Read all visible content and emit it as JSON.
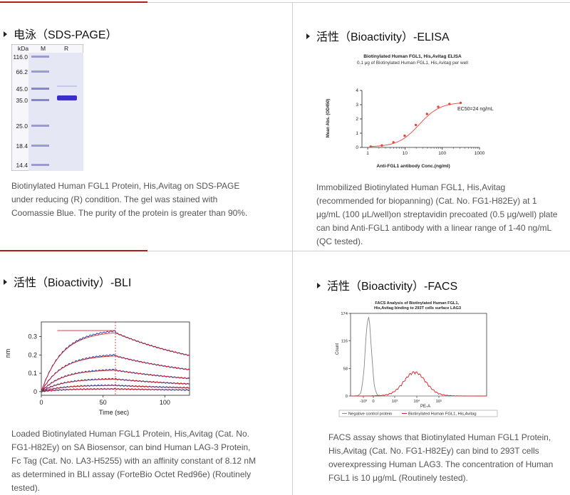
{
  "sections": {
    "sds": {
      "title": "电泳（SDS-PAGE）",
      "gel_header_kda": "kDa",
      "lanes": [
        "M",
        "R"
      ],
      "markers": [
        "116.0",
        "66.2",
        "45.0",
        "35.0",
        "25.0",
        "18.4",
        "14.4"
      ],
      "description": "Biotinylated Human FGL1 Protein, His,Avitag on SDS-PAGE under reducing (R) condition. The gel was stained with Coomassie Blue. The purity of the protein is greater than 90%."
    },
    "elisa": {
      "title": "活性（Bioactivity）-ELISA",
      "description": "Immobilized Biotinylated Human FGL1, His,Avitag (recommended for biopanning) (Cat. No. FG1-H82Ey) at 1 μg/mL (100 μL/well)on streptavidin precoated (0.5 μg/well) plate can bind Anti-FGL1 antibody with a linear range of 1-40 ng/mL (QC tested)."
    },
    "bli": {
      "title": "活性（Bioactivity）-BLI",
      "description": "Loaded Biotinylated Human FGL1 Protein, His,Avitag (Cat. No. FG1-H82Ey) on SA Biosensor, can bind Human LAG-3 Protein, Fc Tag (Cat. No. LA3-H5255) with an affinity constant of 8.12 nM as determined in BLI assay (ForteBio Octet Red96e) (Routinely tested)."
    },
    "facs": {
      "title": "活性（Bioactivity）-FACS",
      "description": "FACS assay shows that Biotinylated Human FGL1 Protein, His,Avitag (Cat. No. FG1-H82Ey) can bind to 293T cells overexpressing Human LAG3. The concentration of Human FGL1 is 10 μg/mL (Routinely tested)."
    }
  },
  "chart_data": [
    {
      "type": "line",
      "title": "Biotinylated Human FGL1, His,Avitag ELISA",
      "subtitle": "0.1 μg of Biotinylated Human FGL1, His,Avitag per well",
      "xlabel": "Anti-FGL1 antibody Conc.(ng/ml)",
      "ylabel": "Mean Abs. (OD450)",
      "xscale": "log",
      "xlim": [
        0.7,
        1000
      ],
      "ylim": [
        0,
        4
      ],
      "xticks": [
        "1",
        "10",
        "100",
        "1000"
      ],
      "yticks": [
        "0",
        "1",
        "2",
        "3",
        "4"
      ],
      "annotation": "EC50=24 ng/mL",
      "color": "#e8453c",
      "x": [
        1.2,
        2.4,
        4.9,
        9.8,
        19.5,
        39,
        78,
        156,
        312
      ],
      "y": [
        0.06,
        0.14,
        0.36,
        0.82,
        1.58,
        2.35,
        2.85,
        3.05,
        3.13
      ]
    },
    {
      "type": "line",
      "xlabel": "Time (sec)",
      "ylabel": "nm",
      "xlim": [
        0,
        120
      ],
      "ylim": [
        -0.02,
        0.38
      ],
      "xticks": [
        "0",
        "50",
        "100"
      ],
      "yticks": [
        "0",
        "0.1",
        "0.2",
        "0.3"
      ],
      "association_end": 60,
      "colors": {
        "measured": "#1f2fa8",
        "fit": "#d12a2a"
      },
      "series_plateaus": [
        0.33,
        0.2,
        0.12,
        0.07,
        0.035,
        0.015
      ]
    },
    {
      "type": "line",
      "title": "FACS Analysis of Biotinylated Human FGL1, His,Avitag binding to 293T cells surface LAG3",
      "xlabel": "PE-A",
      "ylabel": "Count",
      "ylim": [
        0,
        174
      ],
      "xticks": [
        "-10³",
        "0",
        "10³",
        "10⁴",
        "10⁵"
      ],
      "yticks": [
        "0",
        "58",
        "116",
        "174"
      ],
      "legend": "bottom",
      "series": [
        {
          "name": "Negative control protein",
          "color": "#888888"
        },
        {
          "name": "Biotinylated Human FGL1, His,Avitag",
          "color": "#d81e1e"
        }
      ]
    }
  ]
}
